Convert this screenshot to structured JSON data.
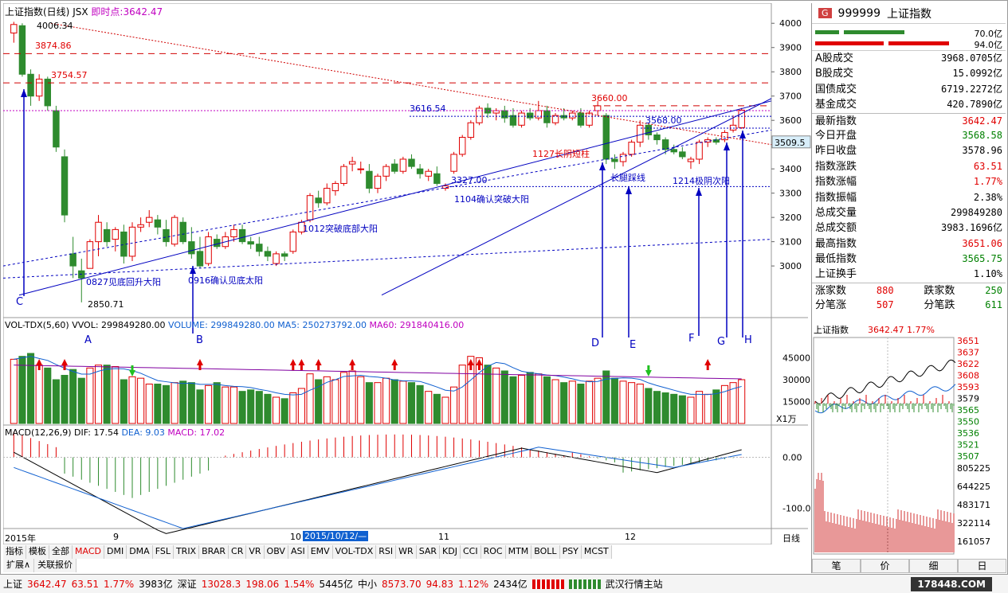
{
  "header": {
    "name": "上证指数(日线)",
    "code": "JSX",
    "live_label": "即时点:",
    "live_value": "3642.47"
  },
  "price_axis": {
    "ticks": [
      "4000",
      "3900",
      "3800",
      "3700",
      "3600",
      "3500",
      "3400",
      "3300",
      "3200",
      "3100",
      "3000"
    ],
    "cursor_value": "3509.5"
  },
  "vol_axis": {
    "ticks": [
      "45000",
      "30000",
      "15000"
    ],
    "unit": "X1万"
  },
  "macd_axis": {
    "ticks": [
      "0.00",
      "-100.0"
    ]
  },
  "price_labels": {
    "high": "4006.34",
    "low": "2850.71",
    "lvl1": "3874.86",
    "lvl2": "3754.57",
    "lvl3": "3616.54",
    "lvl4": "3660.00",
    "lvl5": "3568.00",
    "lvl6": "3327.00"
  },
  "annotations": {
    "a1": "0827见底回升大阳",
    "a2": "0916确认见底太阳",
    "a3": "1012突破底部大阳",
    "a4": "1104确认突破大阳",
    "a5": "1127长阴短柱",
    "a6": "长腿踩线",
    "a7": "1214极阴次阳"
  },
  "letters": {
    "C": "C",
    "A": "A",
    "B": "B",
    "D": "D",
    "E": "E",
    "F": "F",
    "G": "G",
    "H": "H"
  },
  "volume_header": {
    "label": "VOL-TDX(5,60)",
    "vvol_label": "VVOL:",
    "vvol": "299849280.00",
    "volume_label": "VOLUME:",
    "volume": "299849280.00",
    "ma5_label": "MA5:",
    "ma5": "250273792.00",
    "ma60_label": "MA60:",
    "ma60": "291840416.00"
  },
  "macd_header": {
    "label": "MACD(12,26,9)",
    "dif_label": "DIF:",
    "dif": "17.54",
    "dea_label": "DEA:",
    "dea": "9.03",
    "macd_label": "MACD:",
    "macd": "17.02"
  },
  "date_axis": {
    "year": "2015年",
    "m9": "9",
    "m10": "10",
    "m11": "11",
    "m12": "12",
    "cursor_date": "2015/10/12/—",
    "period": "日线"
  },
  "indicator_tabs": [
    "指标",
    "模板",
    "全部",
    "MACD",
    "DMI",
    "DMA",
    "FSL",
    "TRIX",
    "BRAR",
    "CR",
    "VR",
    "OBV",
    "ASI",
    "EMV",
    "VOL-TDX",
    "RSI",
    "WR",
    "SAR",
    "KDJ",
    "CCI",
    "ROC",
    "MTM",
    "BOLL",
    "PSY",
    "MCST"
  ],
  "ext_tabs": [
    "扩展∧",
    "关联报价"
  ],
  "quote": {
    "badge": "G",
    "code": "999999",
    "name": "上证指数",
    "bar1": "70.0亿",
    "bar2": "94.0亿",
    "rows1": [
      {
        "k": "A股成交",
        "v": "3968.0705亿"
      },
      {
        "k": "B股成交",
        "v": "15.0992亿"
      },
      {
        "k": "国债成交",
        "v": "6719.2272亿"
      },
      {
        "k": "基金成交",
        "v": "420.7890亿"
      }
    ],
    "rows2": [
      {
        "k": "最新指数",
        "v": "3642.47",
        "c": "red"
      },
      {
        "k": "今日开盘",
        "v": "3568.58",
        "c": "green"
      },
      {
        "k": "昨日收盘",
        "v": "3578.96",
        "c": "black"
      },
      {
        "k": "指数涨跌",
        "v": "63.51",
        "c": "red"
      },
      {
        "k": "指数涨幅",
        "v": "1.77%",
        "c": "red"
      },
      {
        "k": "指数振幅",
        "v": "2.38%",
        "c": "black"
      },
      {
        "k": "总成交量",
        "v": "299849280",
        "c": "black"
      },
      {
        "k": "总成交额",
        "v": "3983.1696亿",
        "c": "black"
      },
      {
        "k": "最高指数",
        "v": "3651.06",
        "c": "red"
      },
      {
        "k": "最低指数",
        "v": "3565.75",
        "c": "green"
      },
      {
        "k": "上证换手",
        "v": "1.10%",
        "c": "black"
      }
    ],
    "up_label": "涨家数",
    "up": "880",
    "down_label": "跌家数",
    "down": "250",
    "up2_label": "分笔涨",
    "up2": "507",
    "down2_label": "分笔跌",
    "down2": "611"
  },
  "mini": {
    "title": "上证指数",
    "price": "3642.47",
    "pct": "1.77%",
    "ticks": [
      "3651",
      "3637",
      "3622",
      "3608",
      "3593",
      "3579",
      "3565",
      "3550",
      "3536",
      "3521",
      "3507"
    ],
    "vticks": [
      "805225",
      "644225",
      "483171",
      "322114",
      "161057"
    ],
    "tabs": [
      "笔",
      "价",
      "细",
      "日"
    ]
  },
  "status": {
    "sh_label": "上证",
    "sh": "3642.47",
    "sh_chg": "63.51",
    "sh_pct": "1.77%",
    "sh_amt": "3983亿",
    "sz_label": "深证",
    "sz": "13028.3",
    "sz_chg": "198.06",
    "sz_pct": "1.54%",
    "sz_amt": "5445亿",
    "zx_label": "中小",
    "zx": "8573.70",
    "zx_chg": "94.83",
    "zx_pct": "1.12%",
    "zx_amt": "2434亿",
    "site": "武汉行情主站",
    "brand": "178448.COM"
  },
  "colors": {
    "up": "#e00000",
    "down": "#2e8b2e",
    "ma": "#0000c0",
    "bg": "#ffffff"
  }
}
